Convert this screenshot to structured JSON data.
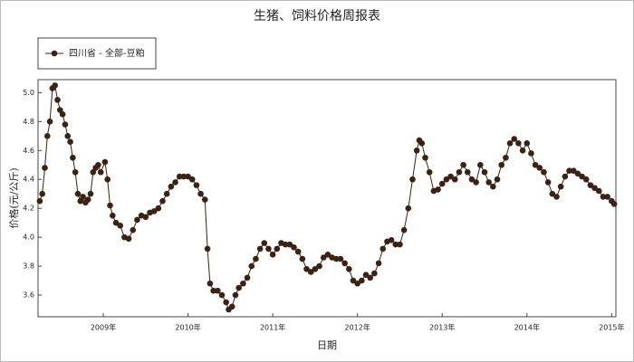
{
  "chart_data": {
    "type": "line",
    "title": "生猪、饲料价格周报表",
    "x_label": "日期",
    "y_label": "价格(元/公斤)",
    "legend_position": "upper left",
    "grid": false,
    "xlim": [
      2008.23,
      2015.05
    ],
    "xticks": [
      {
        "value": 2009,
        "label": "2009年"
      },
      {
        "value": 2010,
        "label": "2010年"
      },
      {
        "value": 2011,
        "label": "2011年"
      },
      {
        "value": 2012,
        "label": "2012年"
      },
      {
        "value": 2013,
        "label": "2013年"
      },
      {
        "value": 2014,
        "label": "2014年"
      },
      {
        "value": 2015,
        "label": "2015年"
      }
    ],
    "ylim": [
      3.45,
      5.09
    ],
    "yticks": [
      3.6,
      3.8,
      {
        "value": 4,
        "label": "4.0"
      },
      4.2,
      4.4,
      4.6,
      4.8,
      {
        "value": 5,
        "label": "5.0"
      }
    ],
    "x": [
      2008.25,
      2008.28,
      2008.31,
      2008.34,
      2008.37,
      2008.4,
      2008.43,
      2008.46,
      2008.49,
      2008.52,
      2008.55,
      2008.58,
      2008.61,
      2008.64,
      2008.67,
      2008.7,
      2008.73,
      2008.76,
      2008.79,
      2008.82,
      2008.85,
      2008.88,
      2008.91,
      2008.94,
      2008.97,
      2009.02,
      2009.05,
      2009.08,
      2009.11,
      2009.15,
      2009.2,
      2009.25,
      2009.3,
      2009.35,
      2009.4,
      2009.45,
      2009.5,
      2009.55,
      2009.6,
      2009.65,
      2009.7,
      2009.75,
      2009.8,
      2009.85,
      2009.9,
      2009.95,
      2010.0,
      2010.05,
      2010.1,
      2010.15,
      2010.2,
      2010.23,
      2010.26,
      2010.3,
      2010.35,
      2010.4,
      2010.45,
      2010.48,
      2010.52,
      2010.56,
      2010.6,
      2010.65,
      2010.7,
      2010.75,
      2010.8,
      2010.85,
      2010.9,
      2010.95,
      2011.0,
      2011.05,
      2011.1,
      2011.15,
      2011.2,
      2011.25,
      2011.3,
      2011.35,
      2011.4,
      2011.45,
      2011.5,
      2011.55,
      2011.6,
      2011.65,
      2011.7,
      2011.75,
      2011.8,
      2011.85,
      2011.9,
      2011.95,
      2012.0,
      2012.05,
      2012.1,
      2012.15,
      2012.2,
      2012.25,
      2012.3,
      2012.35,
      2012.4,
      2012.45,
      2012.5,
      2012.55,
      2012.6,
      2012.65,
      2012.7,
      2012.73,
      2012.76,
      2012.8,
      2012.85,
      2012.9,
      2012.95,
      2013.0,
      2013.05,
      2013.1,
      2013.15,
      2013.2,
      2013.25,
      2013.3,
      2013.35,
      2013.4,
      2013.45,
      2013.5,
      2013.55,
      2013.6,
      2013.65,
      2013.7,
      2013.75,
      2013.8,
      2013.85,
      2013.9,
      2013.95,
      2014.0,
      2014.05,
      2014.1,
      2014.15,
      2014.2,
      2014.25,
      2014.3,
      2014.35,
      2014.4,
      2014.45,
      2014.5,
      2014.55,
      2014.6,
      2014.65,
      2014.7,
      2014.75,
      2014.8,
      2014.85,
      2014.9,
      2014.95,
      2015.0,
      2015.03
    ],
    "series": [
      {
        "name": "四川省 - 全部-豆粕",
        "color": "#3b2214",
        "values": [
          4.25,
          4.3,
          4.48,
          4.7,
          4.8,
          5.03,
          5.05,
          4.95,
          4.88,
          4.85,
          4.78,
          4.7,
          4.66,
          4.55,
          4.45,
          4.3,
          4.25,
          4.28,
          4.24,
          4.26,
          4.3,
          4.45,
          4.48,
          4.5,
          4.45,
          4.52,
          4.4,
          4.22,
          4.15,
          4.1,
          4.08,
          4.0,
          3.99,
          4.05,
          4.12,
          4.15,
          4.14,
          4.17,
          4.18,
          4.2,
          4.25,
          4.3,
          4.35,
          4.38,
          4.42,
          4.42,
          4.42,
          4.4,
          4.36,
          4.3,
          4.26,
          3.92,
          3.68,
          3.63,
          3.63,
          3.6,
          3.55,
          3.5,
          3.52,
          3.6,
          3.65,
          3.68,
          3.72,
          3.8,
          3.85,
          3.92,
          3.96,
          3.92,
          3.88,
          3.92,
          3.96,
          3.95,
          3.95,
          3.93,
          3.9,
          3.85,
          3.78,
          3.76,
          3.78,
          3.8,
          3.86,
          3.88,
          3.86,
          3.85,
          3.85,
          3.82,
          3.78,
          3.7,
          3.68,
          3.7,
          3.74,
          3.72,
          3.75,
          3.82,
          3.92,
          3.97,
          3.98,
          3.95,
          3.95,
          4.05,
          4.2,
          4.4,
          4.6,
          4.67,
          4.65,
          4.55,
          4.45,
          4.32,
          4.33,
          4.37,
          4.4,
          4.42,
          4.4,
          4.45,
          4.5,
          4.45,
          4.4,
          4.38,
          4.5,
          4.45,
          4.38,
          4.35,
          4.4,
          4.5,
          4.55,
          4.65,
          4.68,
          4.65,
          4.6,
          4.65,
          4.58,
          4.5,
          4.48,
          4.45,
          4.38,
          4.3,
          4.28,
          4.35,
          4.42,
          4.46,
          4.46,
          4.44,
          4.42,
          4.4,
          4.36,
          4.34,
          4.32,
          4.28,
          4.28,
          4.25,
          4.23
        ]
      }
    ]
  }
}
